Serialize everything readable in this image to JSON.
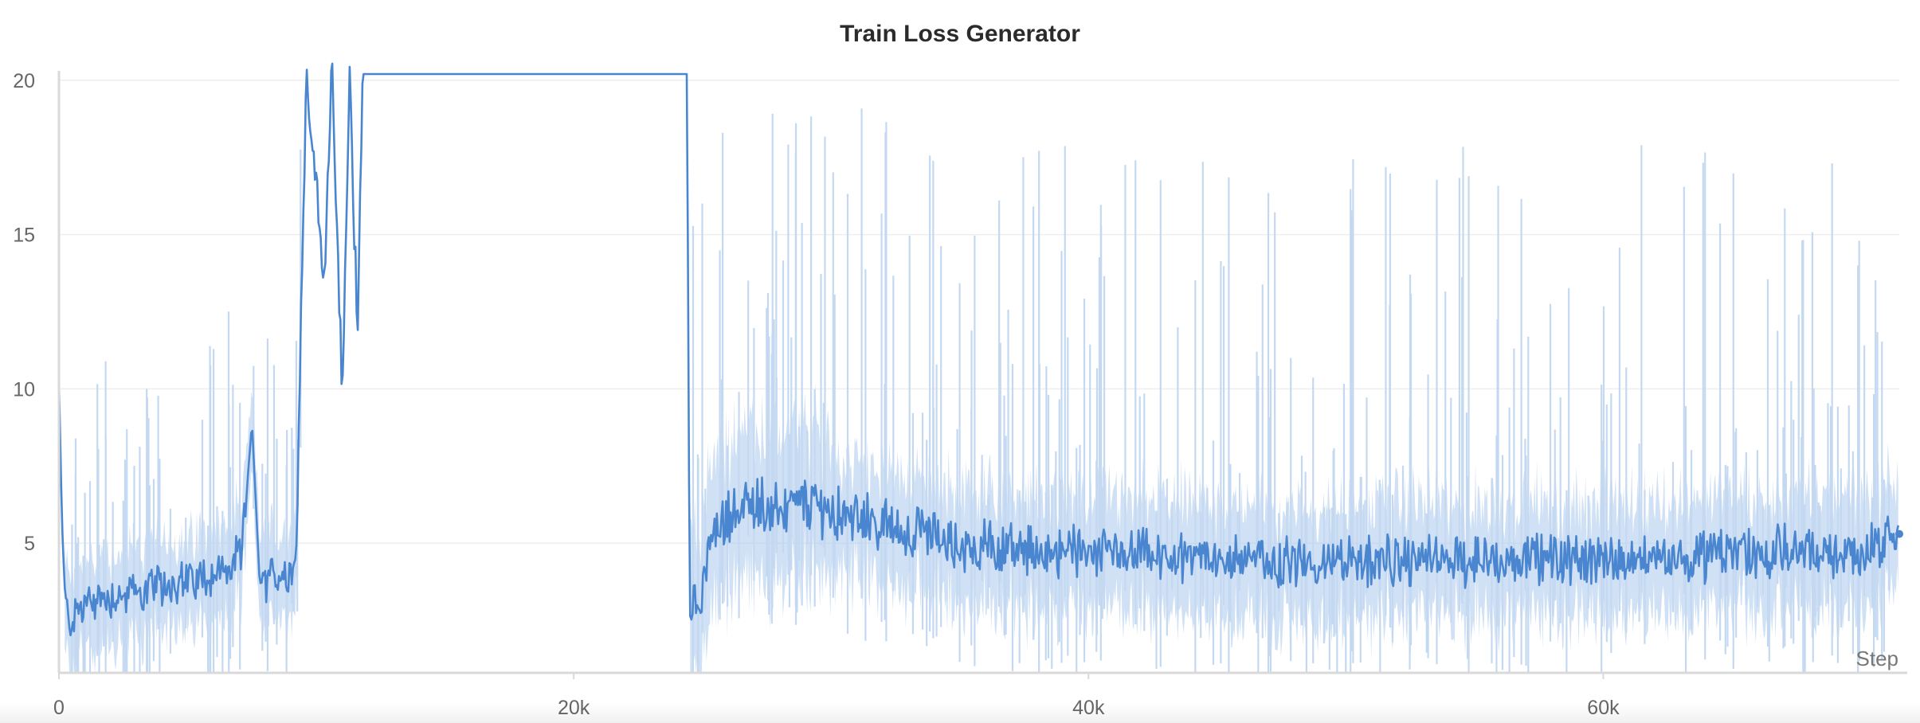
{
  "chart_data": {
    "type": "line",
    "title": "Train Loss Generator",
    "xlabel": "Step",
    "ylabel": "",
    "xlim": [
      0,
      71500
    ],
    "ylim": [
      0.8,
      20.2
    ],
    "x_ticks": [
      0,
      20000,
      40000,
      60000
    ],
    "x_tick_labels": [
      "0",
      "20k",
      "40k",
      "60k"
    ],
    "y_ticks": [
      5,
      10,
      15,
      20
    ],
    "y_tick_labels": [
      "5",
      "10",
      "15",
      "20"
    ],
    "grid": true,
    "legend": "none",
    "colors": {
      "line": "#4a86d0",
      "band": "#a9c8ec",
      "raw_spikes": "#c4d9f1",
      "axis": "#d9d9d9",
      "grid": "#eeeeee",
      "tick_text": "#666666"
    },
    "series": [
      {
        "values_described": "smoothed loss with min/max band",
        "points": [
          [
            0,
            10.2
          ],
          [
            120,
            5.6
          ],
          [
            250,
            3.0
          ],
          [
            400,
            2.4
          ],
          [
            800,
            2.9
          ],
          [
            1500,
            3.2
          ],
          [
            2500,
            3.3
          ],
          [
            3500,
            3.5
          ],
          [
            4500,
            3.7
          ],
          [
            5500,
            3.9
          ],
          [
            6500,
            4.1
          ],
          [
            7100,
            4.6
          ],
          [
            7500,
            8.9
          ],
          [
            7800,
            3.7
          ],
          [
            8500,
            3.9
          ],
          [
            9200,
            4.2
          ],
          [
            9600,
            20.2
          ],
          [
            10300,
            13.6
          ],
          [
            10600,
            20.2
          ],
          [
            11000,
            9.7
          ],
          [
            11300,
            20.2
          ],
          [
            11600,
            11.5
          ],
          [
            11800,
            20.2
          ],
          [
            24400,
            20.2
          ],
          [
            24500,
            3.3
          ],
          [
            24800,
            2.9
          ],
          [
            25300,
            4.9
          ],
          [
            26000,
            5.9
          ],
          [
            27000,
            6.4
          ],
          [
            28000,
            6.1
          ],
          [
            29000,
            6.3
          ],
          [
            30000,
            6.0
          ],
          [
            31000,
            5.8
          ],
          [
            32000,
            5.6
          ],
          [
            33000,
            5.4
          ],
          [
            34000,
            5.2
          ],
          [
            35000,
            5.0
          ],
          [
            36000,
            4.9
          ],
          [
            37000,
            4.8
          ],
          [
            38000,
            4.7
          ],
          [
            39000,
            4.7
          ],
          [
            40000,
            4.6
          ],
          [
            41000,
            4.6
          ],
          [
            42000,
            4.6
          ],
          [
            43000,
            4.5
          ],
          [
            44000,
            4.5
          ],
          [
            46000,
            4.5
          ],
          [
            48000,
            4.4
          ],
          [
            50000,
            4.4
          ],
          [
            52000,
            4.4
          ],
          [
            54000,
            4.4
          ],
          [
            56000,
            4.5
          ],
          [
            58000,
            4.5
          ],
          [
            60000,
            4.5
          ],
          [
            62000,
            4.6
          ],
          [
            64000,
            4.6
          ],
          [
            66000,
            4.7
          ],
          [
            68000,
            4.7
          ],
          [
            70000,
            4.7
          ],
          [
            71500,
            5.3
          ]
        ]
      }
    ]
  }
}
